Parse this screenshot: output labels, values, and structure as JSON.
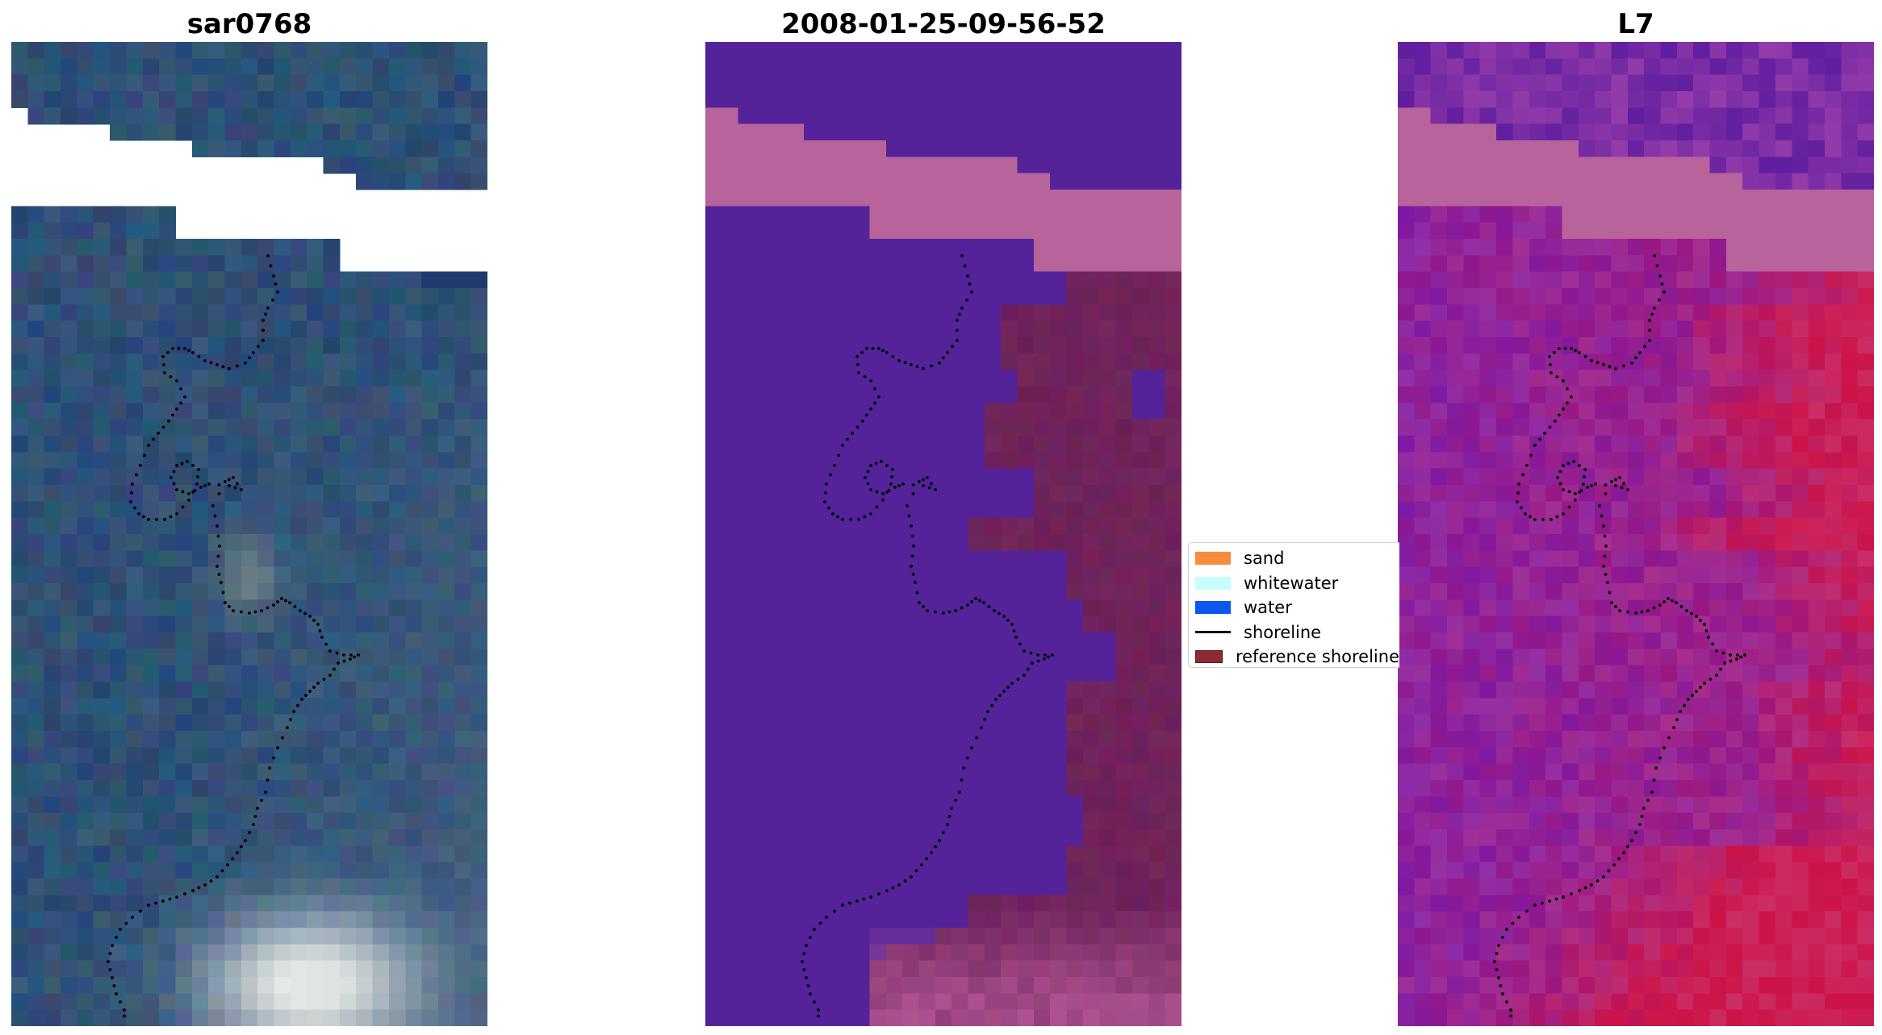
{
  "panels": {
    "rgb": {
      "title": "sar0768"
    },
    "classification": {
      "title": "2008-01-25-09-56-52"
    },
    "mndwi": {
      "title": "L7"
    }
  },
  "legend": {
    "items": [
      {
        "label": "sand",
        "kind": "patch",
        "color": "#f58d3c"
      },
      {
        "label": "whitewater",
        "kind": "patch",
        "color": "#c8fdfd"
      },
      {
        "label": "water",
        "kind": "patch",
        "color": "#0b57f0"
      },
      {
        "label": "shoreline",
        "kind": "line",
        "color": "#000000"
      },
      {
        "label": "reference shoreline",
        "kind": "patch",
        "color": "#8e2a31"
      }
    ]
  },
  "colors": {
    "rgb_background": "#2f5075",
    "rgb_bright_sand": "#f4f6ee",
    "class_background": "#54239a",
    "class_cloud_band": "#b9639b",
    "class_land": "#70235a",
    "mndwi_purple": "#7a1aa8",
    "mndwi_red": "#cc1448",
    "shoreline_points": "#000000"
  }
}
